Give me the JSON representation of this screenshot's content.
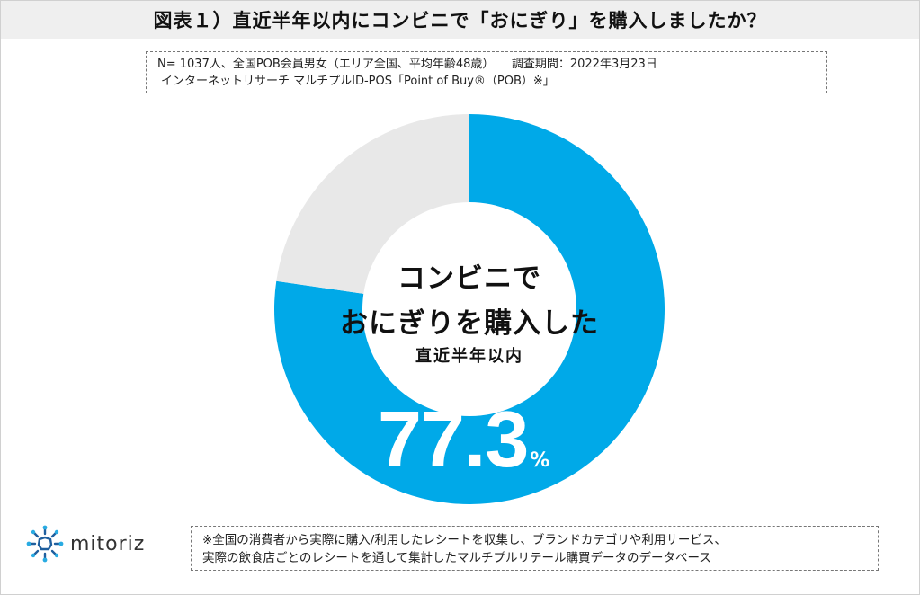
{
  "header": {
    "title": "図表１）直近半年以内にコンビニで「おにぎり」を購入しましたか？"
  },
  "meta": {
    "line1": "N= 1037人、全国POB会員男女（エリア全国、平均年齢48歳）　　調査期間：2022年3月23日",
    "line2": "インターネットリサーチ マルチプルID-POS「Point of Buy®（POB）※」"
  },
  "chart_data": {
    "type": "pie",
    "variant": "donut",
    "slices": [
      {
        "value": 77.3,
        "color": "#00a9e8"
      },
      {
        "value": 22.7,
        "color": "#e8e8e8"
      }
    ],
    "center_text": {
      "line1": "コンビニで",
      "line2": "おにぎりを購入した",
      "line3": "直近半年以内"
    },
    "value_label": "77.3",
    "value_unit": "%"
  },
  "brand": {
    "name": "mitoriz",
    "icon": "mitoriz-logo-icon"
  },
  "footnote": {
    "line1": "※全国の消費者から実際に購入/利用したレシートを収集し、ブランドカテゴリや利用サービス、",
    "line2": "実際の飲食店ごとのレシートを通して集計したマルチプルリテール購買データのデータベース"
  }
}
